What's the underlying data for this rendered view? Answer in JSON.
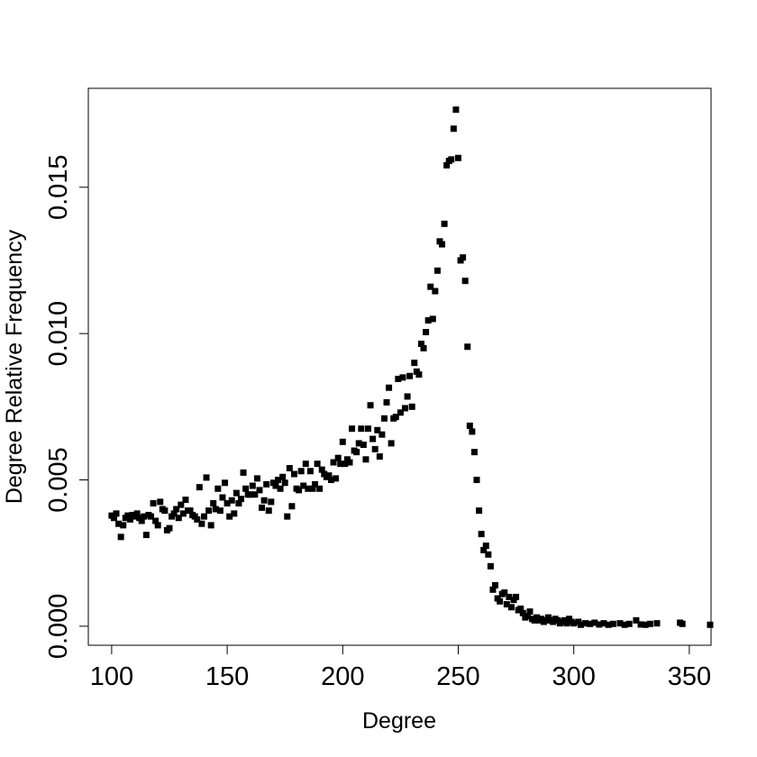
{
  "chart_data": {
    "type": "scatter",
    "xlabel": "Degree",
    "ylabel": "Degree Relative Frequency",
    "color": "#000000",
    "xlim": [
      89.9,
      359.4
    ],
    "ylim": [
      -0.00065,
      0.01838
    ],
    "xticks": [
      100,
      150,
      200,
      250,
      300,
      350
    ],
    "yticks": [
      {
        "value": 0,
        "label": "0.000"
      },
      0.005,
      {
        "value": 0.01,
        "label": "0.010"
      },
      0.015
    ],
    "x": [
      100,
      101,
      102,
      103,
      104,
      105,
      106,
      107,
      108,
      109,
      110,
      111,
      112,
      113,
      114,
      115,
      116,
      117,
      118,
      119,
      120,
      121,
      122,
      123,
      124,
      125,
      126,
      127,
      128,
      129,
      130,
      131,
      132,
      133,
      134,
      135,
      136,
      137,
      138,
      139,
      140,
      141,
      142,
      143,
      144,
      145,
      146,
      147,
      148,
      149,
      150,
      151,
      152,
      153,
      154,
      155,
      156,
      157,
      158,
      159,
      160,
      161,
      162,
      163,
      164,
      165,
      166,
      167,
      168,
      169,
      170,
      171,
      172,
      173,
      174,
      175,
      176,
      177,
      178,
      179,
      180,
      181,
      182,
      183,
      184,
      185,
      186,
      187,
      188,
      189,
      190,
      191,
      192,
      193,
      194,
      195,
      196,
      197,
      198,
      199,
      200,
      201,
      202,
      203,
      204,
      205,
      206,
      207,
      208,
      209,
      210,
      211,
      212,
      213,
      214,
      215,
      216,
      217,
      218,
      219,
      220,
      221,
      222,
      223,
      224,
      225,
      226,
      227,
      228,
      229,
      230,
      231,
      232,
      233,
      234,
      235,
      236,
      237,
      238,
      239,
      240,
      241,
      242,
      243,
      244,
      245,
      246,
      247,
      248,
      249,
      250,
      251,
      252,
      253,
      254,
      255,
      256,
      257,
      258,
      259,
      260,
      261,
      262,
      263,
      264,
      265,
      266,
      267,
      268,
      269,
      270,
      271,
      272,
      273,
      274,
      275,
      276,
      277,
      278,
      279,
      280,
      281,
      282,
      283,
      284,
      285,
      286,
      287,
      288,
      289,
      290,
      291,
      292,
      293,
      294,
      295,
      296,
      297,
      298,
      299,
      300,
      302,
      303,
      305,
      307,
      309,
      311,
      313,
      315,
      317,
      320,
      322,
      324,
      327,
      329,
      331,
      333,
      336,
      346,
      347,
      359
    ],
    "values": [
      0.00378,
      0.0037,
      0.00385,
      0.0035,
      0.00305,
      0.00345,
      0.0037,
      0.00378,
      0.00365,
      0.0038,
      0.00375,
      0.00385,
      0.0037,
      0.0036,
      0.00375,
      0.00312,
      0.0038,
      0.00375,
      0.0042,
      0.0036,
      0.00345,
      0.00425,
      0.004,
      0.00395,
      0.00328,
      0.00335,
      0.00375,
      0.00385,
      0.004,
      0.0037,
      0.00415,
      0.00385,
      0.00432,
      0.00395,
      0.00395,
      0.0038,
      0.00375,
      0.00365,
      0.00475,
      0.0035,
      0.00375,
      0.00508,
      0.00395,
      0.00345,
      0.0042,
      0.004,
      0.0047,
      0.00395,
      0.0044,
      0.0049,
      0.0042,
      0.00375,
      0.0043,
      0.00385,
      0.00455,
      0.0042,
      0.00435,
      0.00525,
      0.0047,
      0.0045,
      0.0045,
      0.0048,
      0.0045,
      0.00505,
      0.00465,
      0.00405,
      0.0043,
      0.00485,
      0.00395,
      0.00425,
      0.0049,
      0.0048,
      0.005,
      0.0047,
      0.0051,
      0.0049,
      0.00375,
      0.0054,
      0.0041,
      0.0052,
      0.0047,
      0.00465,
      0.0053,
      0.0048,
      0.00555,
      0.0047,
      0.0053,
      0.0047,
      0.00485,
      0.00555,
      0.0047,
      0.00535,
      0.0052,
      0.0051,
      0.00515,
      0.005,
      0.0056,
      0.00505,
      0.00575,
      0.00555,
      0.0063,
      0.00555,
      0.0057,
      0.0056,
      0.00675,
      0.006,
      0.00595,
      0.00625,
      0.00675,
      0.0062,
      0.0057,
      0.00675,
      0.00755,
      0.0064,
      0.00605,
      0.0067,
      0.0058,
      0.00655,
      0.0071,
      0.00765,
      0.00815,
      0.00625,
      0.0071,
      0.00715,
      0.00845,
      0.0073,
      0.0085,
      0.00745,
      0.00785,
      0.00855,
      0.0075,
      0.009,
      0.0087,
      0.0086,
      0.00965,
      0.0095,
      0.01005,
      0.01045,
      0.0116,
      0.0105,
      0.01145,
      0.01215,
      0.01315,
      0.01305,
      0.01375,
      0.01575,
      0.0159,
      0.01595,
      0.017,
      0.01765,
      0.016,
      0.0125,
      0.0126,
      0.0118,
      0.00955,
      0.00685,
      0.00665,
      0.00595,
      0.005,
      0.00395,
      0.00315,
      0.0026,
      0.00275,
      0.00245,
      0.00205,
      0.00125,
      0.0014,
      0.00095,
      0.00085,
      0.0011,
      0.00115,
      0.00075,
      0.001,
      0.00065,
      0.0009,
      0.001,
      0.00055,
      0.0006,
      0.00045,
      0.0003,
      0.00035,
      0.0005,
      0.00025,
      0.0002,
      0.0003,
      0.0002,
      0.00025,
      0.00015,
      0.0002,
      0.0003,
      0.0002,
      0.00015,
      0.00025,
      0.0002,
      0.0001,
      0.00015,
      0.0002,
      0.0001,
      0.00025,
      0.00015,
      0.0001,
      0.00015,
      5e-05,
      0.0001,
      8e-05,
      0.00012,
      6e-05,
      0.0001,
      5e-05,
      8e-05,
      0.0001,
      5e-05,
      8e-05,
      0.0002,
      6e-05,
      5e-05,
      8e-05,
      0.0001,
      0.00012,
      8e-05,
      5e-05
    ]
  }
}
